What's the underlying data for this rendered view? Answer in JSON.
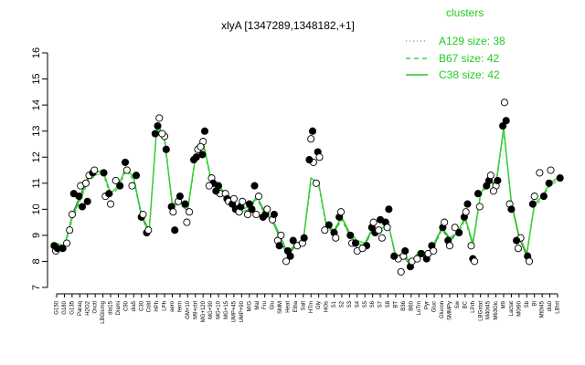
{
  "chart_data": {
    "type": "line",
    "title": "xlyA [1347289,1348182,+1]",
    "xlabel": "",
    "ylabel": "",
    "ylim": [
      7,
      16
    ],
    "yticks": [
      7,
      8,
      9,
      10,
      11,
      12,
      13,
      14,
      15,
      16
    ],
    "grid": false,
    "legend": {
      "title": "clusters",
      "placement": "top-right",
      "entries": [
        {
          "label": "A129 size: 38",
          "style": "dotted"
        },
        {
          "label": "B67 size: 42",
          "style": "dashed"
        },
        {
          "label": "C38 size: 42",
          "style": "solid"
        }
      ]
    },
    "line_color": "#33cc33",
    "x_tick_labels": [
      "G150",
      "G180",
      "G135",
      "Paraq",
      "H2O2",
      "Oxctl",
      "LBGlcmg",
      "dia15",
      "Diami",
      "C90",
      "dia5",
      "C30",
      "Cold",
      "HPh",
      "LPh",
      "aero",
      "ferm",
      "GM+10",
      "M9+ctrl",
      "MG+120",
      "MG+90",
      "MG+10",
      "MG+15",
      "UMP+45",
      "UMP+90",
      "M/G",
      "Mal",
      "Fru",
      "Glu",
      "SMM",
      "Heat",
      "Etha",
      "Salt",
      "HTm",
      "Gly",
      "HOs",
      "S1",
      "S2",
      "S3",
      "S4",
      "S5",
      "S6",
      "S7",
      "S8",
      "BT",
      "B36",
      "B60",
      "LoTm",
      "Pyr",
      "Gluc",
      "Glucon",
      "SMMPy",
      "Sw",
      "BC",
      "LPrh",
      "LBGstat",
      "M40t45",
      "M63Glc",
      "M9",
      "Lactat",
      "M0t90",
      "Sb",
      "BI",
      "Mt0t45",
      "dia0",
      "LBtxt"
    ],
    "series": [
      {
        "values": [
          8.6,
          8.5,
          9.8,
          10.5,
          11.2,
          11.4,
          11.5,
          10.6,
          10.9,
          11.6,
          11.2,
          9.7,
          9.1,
          13.3,
          12.8,
          10.1,
          10.3,
          9.9,
          12.0,
          12.6,
          11.2,
          10.9,
          10.6,
          10.2,
          9.9,
          10.0,
          10.5,
          9.8,
          9.6,
          8.8,
          8.2,
          8.6,
          8.7,
          11.2,
          11.0,
          9.4,
          9.1,
          9.7,
          9.0,
          8.7,
          8.6,
          9.3,
          9.2,
          9.5,
          8.1,
          8.2,
          7.8,
          8.3,
          8.1,
          8.6,
          9.3,
          8.8,
          9.1,
          9.7,
          8.6,
          10.6,
          11.1,
          10.9,
          13.2,
          10.2,
          8.9,
          8.2,
          10.2,
          10.5,
          11.0,
          11.2
        ]
      },
      {
        "values": [
          8.6,
          8.5,
          9.6,
          10.3,
          11.0,
          11.3,
          11.4,
          10.5,
          10.8,
          11.5,
          11.1,
          9.7,
          9.1,
          13.1,
          12.6,
          10.1,
          10.2,
          9.9,
          11.9,
          12.5,
          11.1,
          10.8,
          10.5,
          10.1,
          9.9,
          10.0,
          10.4,
          9.8,
          9.5,
          8.9,
          8.3,
          8.6,
          8.8,
          11.0,
          10.9,
          9.3,
          9.1,
          9.6,
          9.0,
          8.7,
          8.6,
          9.2,
          9.1,
          9.4,
          8.2,
          8.2,
          7.9,
          8.3,
          8.2,
          8.6,
          9.2,
          8.8,
          9.0,
          9.6,
          8.6,
          10.5,
          11.0,
          10.9,
          13.0,
          10.2,
          9.0,
          8.3,
          10.1,
          10.4,
          10.9,
          11.1
        ]
      },
      {
        "values": [
          8.7,
          8.6,
          9.7,
          10.4,
          11.1,
          11.4,
          11.5,
          10.6,
          10.9,
          11.6,
          11.2,
          9.8,
          9.2,
          13.2,
          12.7,
          10.2,
          10.3,
          10.0,
          12.0,
          12.6,
          11.2,
          10.9,
          10.6,
          10.2,
          10.0,
          10.1,
          10.5,
          9.9,
          9.6,
          9.0,
          8.3,
          8.7,
          8.8,
          11.2,
          11.0,
          9.4,
          9.2,
          9.7,
          9.1,
          8.8,
          8.7,
          9.3,
          9.2,
          9.5,
          8.2,
          8.3,
          7.9,
          8.4,
          8.2,
          8.7,
          9.3,
          8.9,
          9.1,
          9.7,
          8.7,
          10.6,
          11.1,
          11.0,
          13.1,
          10.3,
          9.0,
          8.3,
          10.2,
          10.5,
          11.0,
          11.2
        ]
      }
    ],
    "points": [
      [
        0,
        8.6
      ],
      [
        0,
        8.4
      ],
      [
        0,
        8.5
      ],
      [
        1,
        8.7
      ],
      [
        1,
        8.5
      ],
      [
        2,
        9.8
      ],
      [
        2,
        10.6
      ],
      [
        2,
        9.2
      ],
      [
        3,
        10.5
      ],
      [
        3,
        10.9
      ],
      [
        3,
        10.1
      ],
      [
        4,
        11.0
      ],
      [
        4,
        10.3
      ],
      [
        4,
        11.3
      ],
      [
        5,
        11.4
      ],
      [
        5,
        11.5
      ],
      [
        6,
        11.4
      ],
      [
        6,
        10.5
      ],
      [
        7,
        10.6
      ],
      [
        7,
        10.2
      ],
      [
        8,
        10.9
      ],
      [
        8,
        11.1
      ],
      [
        9,
        11.8
      ],
      [
        9,
        11.5
      ],
      [
        10,
        11.3
      ],
      [
        10,
        10.9
      ],
      [
        11,
        9.7
      ],
      [
        11,
        9.8
      ],
      [
        12,
        9.1
      ],
      [
        12,
        9.2
      ],
      [
        13,
        13.2
      ],
      [
        13,
        13.5
      ],
      [
        13,
        12.9
      ],
      [
        14,
        12.8
      ],
      [
        14,
        12.3
      ],
      [
        14,
        12.9
      ],
      [
        15,
        10.1
      ],
      [
        15,
        9.9
      ],
      [
        15,
        9.2
      ],
      [
        16,
        10.3
      ],
      [
        16,
        10.5
      ],
      [
        17,
        9.9
      ],
      [
        17,
        10.2
      ],
      [
        17,
        9.5
      ],
      [
        18,
        12.0
      ],
      [
        18,
        12.3
      ],
      [
        18,
        11.9
      ],
      [
        19,
        12.6
      ],
      [
        19,
        13.0
      ],
      [
        19,
        12.4
      ],
      [
        19,
        12.1
      ],
      [
        20,
        11.2
      ],
      [
        20,
        11.0
      ],
      [
        20,
        10.9
      ],
      [
        21,
        10.9
      ],
      [
        21,
        10.6
      ],
      [
        21,
        10.7
      ],
      [
        22,
        10.6
      ],
      [
        22,
        10.4
      ],
      [
        22,
        10.3
      ],
      [
        23,
        10.2
      ],
      [
        23,
        10.4
      ],
      [
        23,
        10.0
      ],
      [
        24,
        9.9
      ],
      [
        24,
        10.1
      ],
      [
        24,
        10.3
      ],
      [
        25,
        10.0
      ],
      [
        25,
        9.8
      ],
      [
        25,
        10.2
      ],
      [
        26,
        10.5
      ],
      [
        26,
        10.9
      ],
      [
        26,
        9.8
      ],
      [
        27,
        9.8
      ],
      [
        27,
        10.0
      ],
      [
        27,
        9.7
      ],
      [
        28,
        9.6
      ],
      [
        28,
        9.8
      ],
      [
        29,
        8.8
      ],
      [
        29,
        8.6
      ],
      [
        29,
        9.0
      ],
      [
        30,
        8.2
      ],
      [
        30,
        8.0
      ],
      [
        30,
        8.4
      ],
      [
        31,
        8.6
      ],
      [
        31,
        8.8
      ],
      [
        32,
        8.7
      ],
      [
        32,
        8.9
      ],
      [
        33,
        11.8
      ],
      [
        33,
        11.9
      ],
      [
        33,
        12.7
      ],
      [
        33,
        13.0
      ],
      [
        34,
        11.0
      ],
      [
        34,
        12.2
      ],
      [
        34,
        12.0
      ],
      [
        35,
        9.4
      ],
      [
        35,
        9.2
      ],
      [
        36,
        9.1
      ],
      [
        36,
        8.9
      ],
      [
        37,
        9.7
      ],
      [
        37,
        9.9
      ],
      [
        38,
        9.0
      ],
      [
        38,
        8.7
      ],
      [
        39,
        8.7
      ],
      [
        39,
        8.4
      ],
      [
        40,
        8.6
      ],
      [
        40,
        8.5
      ],
      [
        41,
        9.3
      ],
      [
        41,
        9.5
      ],
      [
        41,
        9.1
      ],
      [
        42,
        9.2
      ],
      [
        42,
        9.6
      ],
      [
        42,
        8.9
      ],
      [
        43,
        9.5
      ],
      [
        43,
        9.3
      ],
      [
        43,
        10.0
      ],
      [
        44,
        8.1
      ],
      [
        44,
        8.2
      ],
      [
        45,
        8.2
      ],
      [
        45,
        8.4
      ],
      [
        45,
        7.6
      ],
      [
        46,
        7.8
      ],
      [
        46,
        8.0
      ],
      [
        47,
        8.3
      ],
      [
        47,
        8.1
      ],
      [
        48,
        8.1
      ],
      [
        48,
        8.3
      ],
      [
        49,
        8.6
      ],
      [
        49,
        8.4
      ],
      [
        50,
        9.3
      ],
      [
        50,
        9.5
      ],
      [
        51,
        8.8
      ],
      [
        51,
        8.6
      ],
      [
        52,
        9.1
      ],
      [
        52,
        9.3
      ],
      [
        53,
        9.7
      ],
      [
        53,
        9.9
      ],
      [
        53,
        10.2
      ],
      [
        54,
        8.6
      ],
      [
        54,
        8.1
      ],
      [
        54,
        8.0
      ],
      [
        55,
        10.6
      ],
      [
        55,
        10.1
      ],
      [
        56,
        11.1
      ],
      [
        56,
        11.3
      ],
      [
        56,
        10.9
      ],
      [
        57,
        10.9
      ],
      [
        57,
        11.1
      ],
      [
        57,
        10.7
      ],
      [
        58,
        13.2
      ],
      [
        58,
        14.1
      ],
      [
        58,
        13.4
      ],
      [
        59,
        10.2
      ],
      [
        59,
        10.0
      ],
      [
        60,
        8.9
      ],
      [
        60,
        8.8
      ],
      [
        60,
        8.5
      ],
      [
        61,
        8.2
      ],
      [
        61,
        8.0
      ],
      [
        62,
        10.2
      ],
      [
        62,
        10.5
      ],
      [
        63,
        10.5
      ],
      [
        63,
        11.4
      ],
      [
        64,
        11.0
      ],
      [
        64,
        11.5
      ],
      [
        65,
        11.2
      ]
    ],
    "open_points_every": 2
  }
}
